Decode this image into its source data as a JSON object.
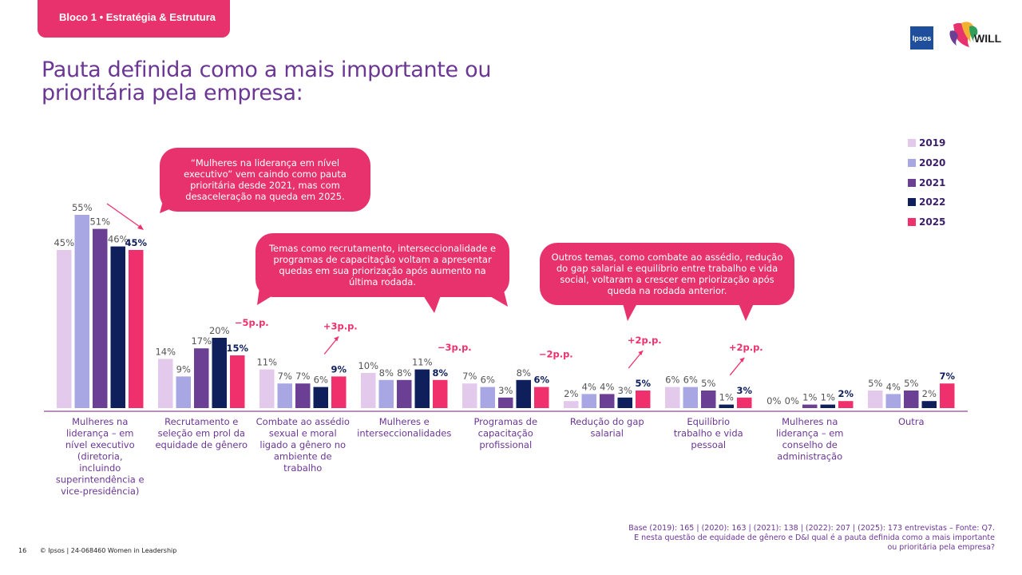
{
  "header": {
    "tag": "Bloco 1 • Estratégia & Estrutura",
    "title": "Pauta definida como a mais importante ou prioritária pela empresa:",
    "logos": {
      "ipsos": "Ipsos",
      "will": "WILL"
    }
  },
  "colors": {
    "2019": "#e3c9ec",
    "2020": "#a8a7e3",
    "2021": "#6a3f94",
    "2022": "#0e1f5c",
    "2025": "#f0306c",
    "brand_pink": "#e8326e",
    "title_purple": "#6b3694",
    "axis": "#8c4a93"
  },
  "callouts": [
    "“Mulheres na liderança em nível executivo” vem caindo como pauta prioritária desde 2021, mas com desaceleração na queda em 2025.",
    "Temas como recrutamento, interseccionalidade e programas de capacitação voltam a apresentar quedas em sua priorização após aumento na última rodada.",
    "Outros temas, como combate ao assédio, redução do gap salarial e equilíbrio entre trabalho e vida social, voltaram a crescer em priorização após queda na rodada anterior."
  ],
  "chart_data": {
    "type": "bar",
    "title": "",
    "xlabel": "",
    "ylabel": "",
    "ylim": [
      0,
      55
    ],
    "legend_position": "right",
    "categories": [
      "Mulheres na liderança – em nível executivo (diretoria, incluindo superintendência e vice-presidência)",
      "Recrutamento e seleção em prol da equidade de gênero",
      "Combate ao assédio sexual e moral ligado a gênero no ambiente de trabalho",
      "Mulheres e interseccionalidades",
      "Programas de capacitação profissional",
      "Redução do gap salarial",
      "Equilíbrio trabalho e vida pessoal",
      "Mulheres na liderança – em conselho de administração",
      "Outra"
    ],
    "series": [
      {
        "name": "2019",
        "values": [
          45,
          14,
          11,
          10,
          7,
          2,
          6,
          0,
          5
        ]
      },
      {
        "name": "2020",
        "values": [
          55,
          9,
          7,
          8,
          6,
          4,
          6,
          0,
          4
        ]
      },
      {
        "name": "2021",
        "values": [
          51,
          17,
          7,
          8,
          3,
          4,
          5,
          1,
          5
        ]
      },
      {
        "name": "2022",
        "values": [
          46,
          20,
          6,
          11,
          8,
          3,
          1,
          1,
          2
        ]
      },
      {
        "name": "2025",
        "values": [
          45,
          15,
          9,
          8,
          6,
          5,
          3,
          2,
          7
        ]
      }
    ],
    "value_suffix": "%",
    "deltas": [
      {
        "category_index": 1,
        "text": "−5p.p."
      },
      {
        "category_index": 2,
        "text": "+3p.p."
      },
      {
        "category_index": 3,
        "text": "−3p.p."
      },
      {
        "category_index": 4,
        "text": "−2p.p."
      },
      {
        "category_index": 5,
        "text": "+2p.p."
      },
      {
        "category_index": 6,
        "text": "+2p.p."
      }
    ]
  },
  "footer": {
    "page_number": "16",
    "copyright": "© Ipsos | 24-068460 Women in Leadership",
    "base_note": "Base (2019): 165 | (2020): 163 | (2021): 138 | (2022): 207 | (2025): 173 entrevistas – Fonte: Q7. E nesta questão de equidade de gênero e D&I qual é a pauta definida como a mais importante ou prioritária pela empresa?"
  }
}
